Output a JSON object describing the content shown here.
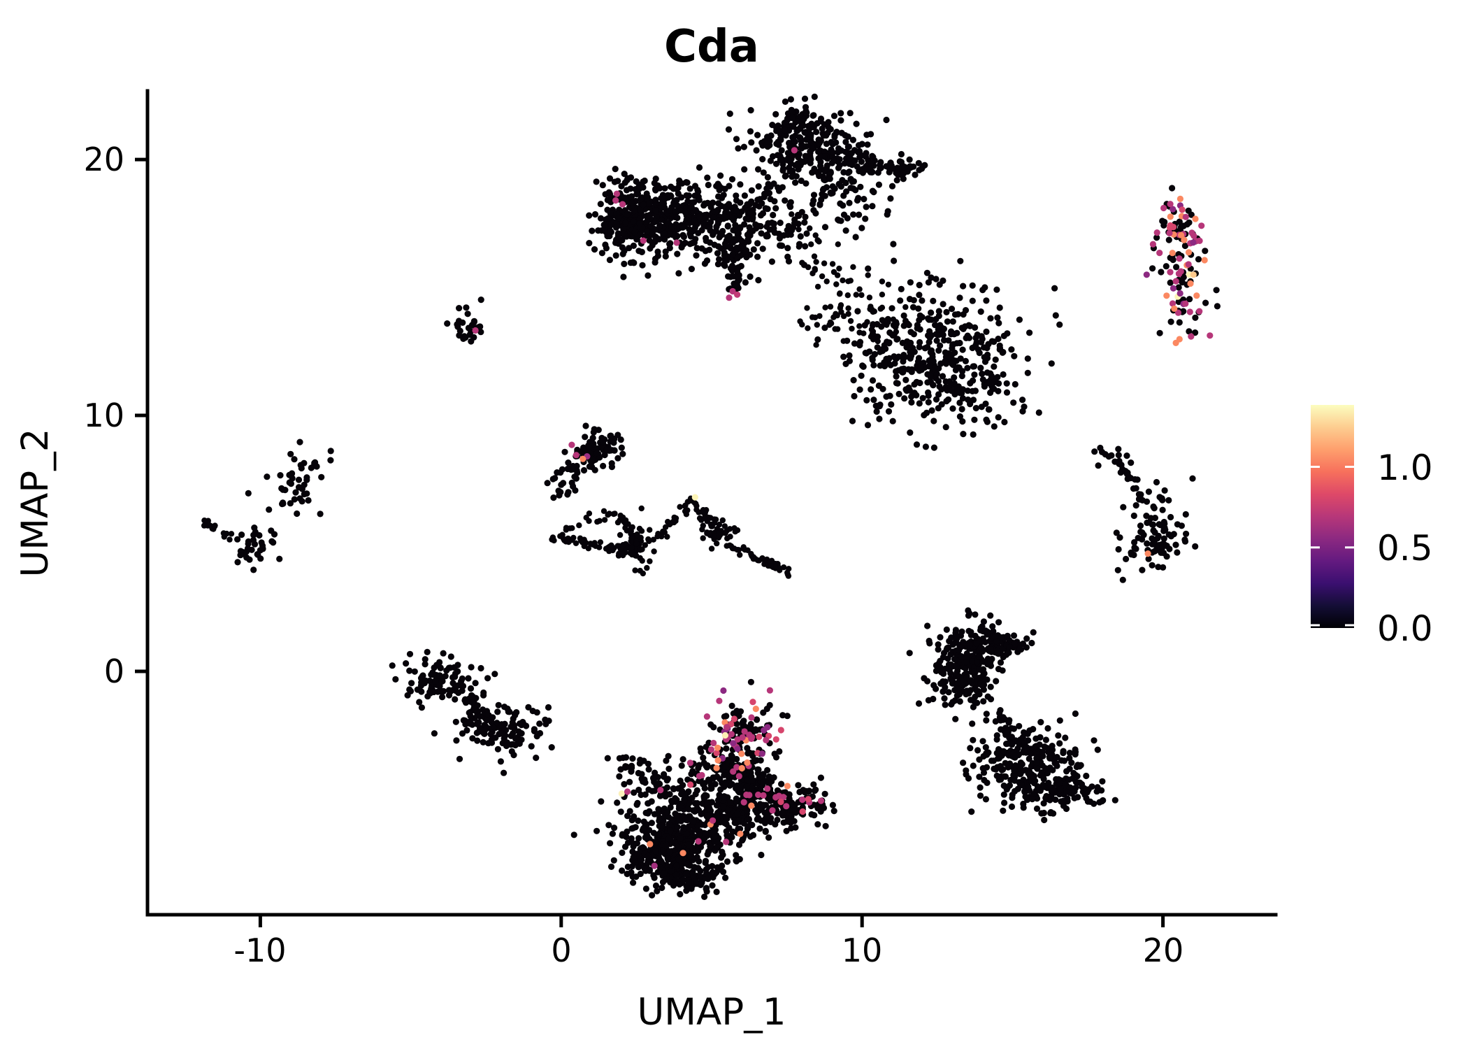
{
  "title": "Cda",
  "axes": {
    "x_label": "UMAP_1",
    "y_label": "UMAP_2",
    "x_ticks": [
      -10,
      0,
      10,
      20
    ],
    "x_tick_labels": [
      "-10",
      "0",
      "10",
      "20"
    ],
    "y_ticks": [
      0,
      10,
      20
    ],
    "y_tick_labels": [
      "0",
      "10",
      "20"
    ],
    "x_range": [
      -13.75,
      23.75
    ],
    "y_range": [
      -9.51,
      22.68
    ]
  },
  "colorbar": {
    "tick_labels": [
      "1.0",
      "0.5",
      "0.0"
    ],
    "tick_values": [
      1.0,
      0.5,
      0.0
    ],
    "max_value": 1.384,
    "colormap": "magma",
    "gradient_stops": [
      [
        "0.00",
        "#000004"
      ],
      [
        "0.10",
        "#140e36"
      ],
      [
        "0.20",
        "#3b0f70"
      ],
      [
        "0.30",
        "#641a80"
      ],
      [
        "0.40",
        "#8c2981"
      ],
      [
        "0.50",
        "#b73779"
      ],
      [
        "0.60",
        "#de4968"
      ],
      [
        "0.70",
        "#f7705c"
      ],
      [
        "0.80",
        "#fe9f6d"
      ],
      [
        "0.90",
        "#fdcd90"
      ],
      [
        "1.00",
        "#fcfdbf"
      ]
    ]
  },
  "chart_data": {
    "type": "scatter",
    "title": "Cda",
    "xlabel": "UMAP_1",
    "ylabel": "UMAP_2",
    "xlim": [
      -13.75,
      23.75
    ],
    "ylim": [
      -9.51,
      22.68
    ],
    "point_color_zero": "#060309",
    "point_radius": 4.6,
    "seed": 42,
    "clusters": [
      {
        "name": "top-main-left-arm",
        "kind": "gauss",
        "cx": 3.4,
        "cy": 17.9,
        "sx": 1.05,
        "sy": 0.62,
        "n": 300
      },
      {
        "name": "top-main-left-end",
        "kind": "gauss",
        "cx": 2.1,
        "cy": 17.6,
        "sx": 0.55,
        "sy": 0.75,
        "n": 160
      },
      {
        "name": "top-main-head",
        "kind": "gauss",
        "cx": 8.1,
        "cy": 20.3,
        "sx": 1.0,
        "sy": 0.75,
        "n": 240
      },
      {
        "name": "top-main-topknot",
        "kind": "gauss",
        "cx": 7.9,
        "cy": 21.6,
        "sx": 0.45,
        "sy": 0.4,
        "n": 50
      },
      {
        "name": "top-main-center",
        "kind": "gauss",
        "cx": 6.2,
        "cy": 17.5,
        "sx": 0.95,
        "sy": 0.85,
        "n": 170
      },
      {
        "name": "top-main-inner-sparse",
        "kind": "gauss",
        "cx": 4.6,
        "cy": 16.9,
        "sx": 1.2,
        "sy": 0.8,
        "n": 70
      },
      {
        "name": "top-main-right-arm",
        "kind": "path",
        "pts": [
          [
            8.9,
            20.0
          ],
          [
            10.2,
            20.0
          ],
          [
            11.0,
            19.6
          ],
          [
            11.9,
            19.7
          ]
        ],
        "n": 80,
        "jitter": 0.22
      },
      {
        "name": "top-main-neck-down",
        "kind": "path",
        "pts": [
          [
            6.1,
            18.1
          ],
          [
            5.75,
            16.2
          ],
          [
            5.75,
            14.9
          ]
        ],
        "n": 55,
        "jitter": 0.18
      },
      {
        "name": "top-main-below-head",
        "kind": "gauss",
        "cx": 9.3,
        "cy": 18.6,
        "sx": 1.0,
        "sy": 0.8,
        "n": 70
      },
      {
        "name": "top-main-trail-southeast",
        "kind": "path",
        "pts": [
          [
            7.6,
            17.3
          ],
          [
            8.6,
            15.8
          ],
          [
            9.8,
            14.6
          ],
          [
            11.0,
            13.5
          ]
        ],
        "n": 60,
        "jitter": 0.45,
        "r": 4.2
      },
      {
        "name": "right-column-upper",
        "kind": "gauss",
        "cx": 20.45,
        "cy": 17.3,
        "sx": 0.38,
        "sy": 0.75,
        "n": 60,
        "colored": {
          "frac": 0.48,
          "palette": [
            [
              "#b63679",
              40
            ],
            [
              "#8c2981",
              15
            ],
            [
              "#d6456c",
              10
            ],
            [
              "#fb8861",
              22
            ],
            [
              "#feca8d",
              8
            ],
            [
              "#fcf4b6",
              5
            ]
          ]
        }
      },
      {
        "name": "right-column-lower",
        "kind": "gauss",
        "cx": 20.65,
        "cy": 15.3,
        "sx": 0.42,
        "sy": 0.95,
        "n": 75,
        "colored": {
          "frac": 0.48,
          "palette": [
            [
              "#b63679",
              40
            ],
            [
              "#8c2981",
              15
            ],
            [
              "#d6456c",
              10
            ],
            [
              "#fb8861",
              22
            ],
            [
              "#feca8d",
              8
            ],
            [
              "#fcf4b6",
              5
            ]
          ]
        }
      },
      {
        "name": "small-midleft",
        "kind": "gauss",
        "cx": -3.1,
        "cy": 13.45,
        "sx": 0.3,
        "sy": 0.42,
        "n": 26
      },
      {
        "name": "midright-blob",
        "kind": "gauss",
        "cx": 12.55,
        "cy": 12.2,
        "sx": 1.35,
        "sy": 1.35,
        "n": 430
      },
      {
        "name": "midright-chain",
        "kind": "path",
        "pts": [
          [
            8.1,
            14.1
          ],
          [
            9.2,
            13.6
          ],
          [
            10.8,
            12.9
          ]
        ],
        "n": 40,
        "jitter": 0.35,
        "r": 4.2
      },
      {
        "name": "center-diagonal",
        "kind": "path",
        "pts": [
          [
            -0.1,
            7.1
          ],
          [
            0.8,
            8.1
          ],
          [
            1.45,
            8.9
          ]
        ],
        "n": 70,
        "jitter": 0.3
      },
      {
        "name": "center-diagonal-top",
        "kind": "gauss",
        "cx": 1.35,
        "cy": 8.75,
        "sx": 0.35,
        "sy": 0.45,
        "n": 45
      },
      {
        "name": "web-bottom-edge",
        "kind": "path",
        "pts": [
          [
            -0.28,
            5.2
          ],
          [
            1.1,
            4.95
          ],
          [
            2.55,
            4.6
          ]
        ],
        "n": 50,
        "jitter": 0.1,
        "r": 4.2
      },
      {
        "name": "web-upper-edge",
        "kind": "path",
        "pts": [
          [
            0.0,
            5.45
          ],
          [
            1.9,
            6.2
          ]
        ],
        "n": 16,
        "jitter": 0.12,
        "r": 4.2
      },
      {
        "name": "web-diag",
        "kind": "path",
        "pts": [
          [
            1.9,
            6.2
          ],
          [
            2.75,
            4.65
          ]
        ],
        "n": 26,
        "jitter": 0.1,
        "r": 4.2
      },
      {
        "name": "web-knot",
        "kind": "gauss",
        "cx": 2.5,
        "cy": 5.0,
        "sx": 0.3,
        "sy": 0.45,
        "n": 40,
        "r": 4.2
      },
      {
        "name": "web-rise",
        "kind": "path",
        "pts": [
          [
            3.3,
            5.3
          ],
          [
            4.4,
            6.7
          ]
        ],
        "n": 26,
        "jitter": 0.08,
        "r": 4.2
      },
      {
        "name": "web-fall",
        "kind": "path",
        "pts": [
          [
            4.5,
            6.6
          ],
          [
            5.3,
            5.2
          ]
        ],
        "n": 28,
        "jitter": 0.1,
        "r": 4.2
      },
      {
        "name": "web-knot2",
        "kind": "gauss",
        "cx": 5.3,
        "cy": 5.35,
        "sx": 0.3,
        "sy": 0.35,
        "n": 35,
        "r": 4.2
      },
      {
        "name": "web-tail",
        "kind": "path",
        "pts": [
          [
            5.55,
            4.95
          ],
          [
            6.6,
            4.35
          ],
          [
            7.75,
            3.75
          ]
        ],
        "n": 45,
        "jitter": 0.09,
        "r": 4.2
      },
      {
        "name": "farleft-blob",
        "kind": "gauss",
        "cx": -8.85,
        "cy": 7.3,
        "sx": 0.5,
        "sy": 0.55,
        "n": 40
      },
      {
        "name": "farleft-satellite",
        "kind": "gauss",
        "cx": -8.2,
        "cy": 7.9,
        "sx": 0.18,
        "sy": 0.18,
        "n": 6
      },
      {
        "name": "farleft-streak",
        "kind": "path",
        "pts": [
          [
            -11.85,
            5.85
          ],
          [
            -10.95,
            5.25
          ]
        ],
        "n": 16,
        "jitter": 0.07,
        "r": 4.2
      },
      {
        "name": "farleft-lower-blob",
        "kind": "gauss",
        "cx": -10.3,
        "cy": 4.9,
        "sx": 0.42,
        "sy": 0.38,
        "n": 34
      },
      {
        "name": "leftbottom-upper",
        "kind": "gauss",
        "cx": -3.9,
        "cy": -0.5,
        "sx": 0.65,
        "sy": 0.5,
        "n": 90
      },
      {
        "name": "leftbottom-arm",
        "kind": "path",
        "pts": [
          [
            -4.6,
            -0.35
          ],
          [
            -3.9,
            -0.5
          ]
        ],
        "n": 14,
        "jitter": 0.15
      },
      {
        "name": "leftbottom-bridge",
        "kind": "path",
        "pts": [
          [
            -3.3,
            -1.0
          ],
          [
            -2.4,
            -1.8
          ]
        ],
        "n": 28,
        "jitter": 0.22
      },
      {
        "name": "leftbottom-lower",
        "kind": "gauss",
        "cx": -1.95,
        "cy": -2.3,
        "sx": 0.75,
        "sy": 0.55,
        "n": 120
      },
      {
        "name": "rightmid-tip",
        "kind": "gauss",
        "cx": 18.35,
        "cy": 8.45,
        "sx": 0.28,
        "sy": 0.2,
        "n": 12
      },
      {
        "name": "rightmid-chain",
        "kind": "path",
        "pts": [
          [
            18.5,
            8.2
          ],
          [
            19.0,
            7.4
          ],
          [
            19.4,
            6.5
          ]
        ],
        "n": 22,
        "jitter": 0.1
      },
      {
        "name": "rightmid-blob",
        "kind": "gauss",
        "cx": 19.75,
        "cy": 5.4,
        "sx": 0.5,
        "sy": 0.75,
        "n": 95
      },
      {
        "name": "bottomright-top-lobe-a",
        "kind": "gauss",
        "cx": 13.6,
        "cy": 0.8,
        "sx": 0.6,
        "sy": 0.6,
        "n": 150
      },
      {
        "name": "bottomright-top-lobe-b",
        "kind": "gauss",
        "cx": 13.4,
        "cy": -0.3,
        "sx": 0.55,
        "sy": 0.65,
        "n": 130
      },
      {
        "name": "bottomright-top-arm",
        "kind": "gauss",
        "cx": 14.7,
        "cy": 1.0,
        "sx": 0.45,
        "sy": 0.28,
        "n": 55
      },
      {
        "name": "bottomright-neck",
        "kind": "path",
        "pts": [
          [
            14.55,
            -1.6
          ],
          [
            14.9,
            -2.4
          ]
        ],
        "n": 14,
        "jitter": 0.12
      },
      {
        "name": "bottomright-bottom-lobe",
        "kind": "gauss",
        "cx": 15.5,
        "cy": -3.7,
        "sx": 0.85,
        "sy": 0.85,
        "n": 270
      },
      {
        "name": "bottomright-right-ext",
        "kind": "gauss",
        "cx": 16.9,
        "cy": -4.6,
        "sx": 0.7,
        "sy": 0.4,
        "n": 80
      },
      {
        "name": "bottomcenter-colored-lobe",
        "kind": "gauss",
        "cx": 6.05,
        "cy": -2.55,
        "sx": 0.55,
        "sy": 0.75,
        "n": 140,
        "colored": {
          "frac": 0.28,
          "palette": [
            [
              "#b63679",
              50
            ],
            [
              "#8c2981",
              20
            ],
            [
              "#d6456c",
              15
            ],
            [
              "#fb8861",
              10
            ],
            [
              "#fde2a3",
              5
            ]
          ]
        }
      },
      {
        "name": "bottomcenter-left-arm",
        "kind": "path",
        "pts": [
          [
            1.95,
            -3.6
          ],
          [
            3.0,
            -4.3
          ],
          [
            3.8,
            -4.9
          ]
        ],
        "n": 50,
        "jitter": 0.32
      },
      {
        "name": "bottomcenter-main",
        "kind": "gauss",
        "cx": 4.3,
        "cy": -6.1,
        "sx": 1.05,
        "sy": 0.95,
        "n": 420
      },
      {
        "name": "bottomcenter-lowerleft",
        "kind": "gauss",
        "cx": 3.4,
        "cy": -7.2,
        "sx": 0.75,
        "sy": 0.6,
        "n": 200
      },
      {
        "name": "bottomcenter-tip",
        "kind": "gauss",
        "cx": 4.3,
        "cy": -8.0,
        "sx": 0.4,
        "sy": 0.35,
        "n": 60
      },
      {
        "name": "bottomcenter-right",
        "kind": "gauss",
        "cx": 6.3,
        "cy": -5.0,
        "sx": 0.85,
        "sy": 0.7,
        "n": 260,
        "colored": {
          "frac": 0.05,
          "palette": [
            [
              "#b63679",
              60
            ],
            [
              "#d6456c",
              20
            ],
            [
              "#fb8861",
              20
            ]
          ]
        }
      },
      {
        "name": "bottomcenter-right-arm",
        "kind": "gauss",
        "cx": 7.9,
        "cy": -5.2,
        "sx": 0.6,
        "sy": 0.35,
        "n": 80,
        "colored": {
          "frac": 0.08,
          "palette": [
            [
              "#b63679",
              70
            ],
            [
              "#d6456c",
              30
            ]
          ]
        }
      },
      {
        "name": "bottomcenter-gap",
        "kind": "gauss",
        "cx": 5.3,
        "cy": -3.9,
        "sx": 0.7,
        "sy": 0.5,
        "n": 60,
        "colored": {
          "frac": 0.1,
          "palette": [
            [
              "#b63679",
              70
            ],
            [
              "#fb8861",
              30
            ]
          ]
        }
      }
    ],
    "highlight_points": [
      [
        "#b63679",
        1.85,
        18.66
      ],
      [
        "#b63679",
        1.81,
        18.4
      ],
      [
        "#b63679",
        2.04,
        18.25
      ],
      [
        "#b63679",
        2.73,
        16.83
      ],
      [
        "#b63679",
        3.84,
        16.75
      ],
      [
        "#b63679",
        7.75,
        20.36
      ],
      [
        "#b63679",
        5.7,
        14.85
      ],
      [
        "#c23b76",
        5.85,
        14.72
      ],
      [
        "#b63679",
        5.58,
        14.6
      ],
      [
        "#b63679",
        -2.85,
        13.32
      ],
      [
        "#b63679",
        0.35,
        8.85
      ],
      [
        "#b63679",
        0.5,
        8.45
      ],
      [
        "#9c2e81",
        0.86,
        8.4
      ],
      [
        "#fb8861",
        0.72,
        8.3
      ],
      [
        "#fcf4b6",
        4.45,
        6.8
      ],
      [
        "#fb8861",
        19.5,
        4.6
      ],
      [
        "#fcefb4",
        5.45,
        -2.5
      ],
      [
        "#fcf1bb",
        2.01,
        -4.78
      ],
      [
        "#fb8861",
        2.95,
        -6.75
      ],
      [
        "#fb8861",
        4.05,
        -7.1
      ],
      [
        "#fb8861",
        5.95,
        -6.35
      ],
      [
        "#fb8861",
        6.32,
        -5.25
      ],
      [
        "#b63679",
        3.3,
        -4.64
      ],
      [
        "#b63679",
        4.56,
        -6.64
      ],
      [
        "#b63679",
        7.13,
        -4.92
      ],
      [
        "#b63679",
        7.48,
        -5.27
      ],
      [
        "#a3307e",
        3.1,
        -7.6
      ],
      [
        "#b63679",
        2.2,
        -4.7
      ],
      [
        "#d6456c",
        7.3,
        -5.1
      ]
    ]
  }
}
